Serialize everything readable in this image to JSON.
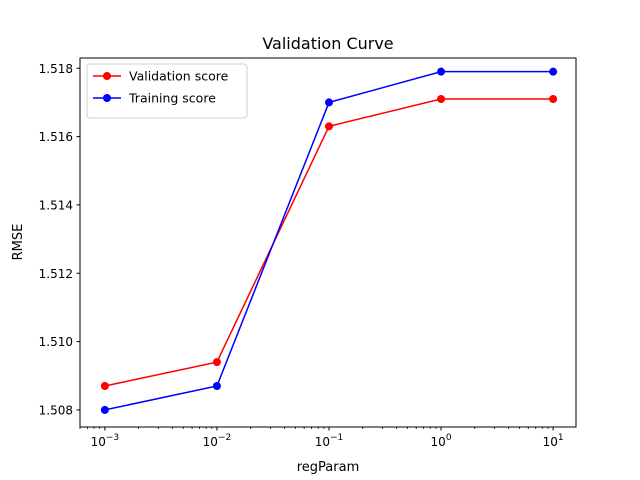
{
  "chart_data": {
    "type": "line",
    "title": "Validation Curve",
    "xlabel": "regParam",
    "ylabel": "RMSE",
    "xscale": "log",
    "xlim": [
      0.0006,
      16
    ],
    "ylim": [
      1.5075,
      1.5183
    ],
    "grid": false,
    "legend_position": "top-left",
    "x": [
      0.001,
      0.01,
      0.1,
      1,
      10
    ],
    "x_tick_labels": [
      {
        "base": "10",
        "exp": "−3"
      },
      {
        "base": "10",
        "exp": "−2"
      },
      {
        "base": "10",
        "exp": "−1"
      },
      {
        "base": "10",
        "exp": "0"
      },
      {
        "base": "10",
        "exp": "1"
      }
    ],
    "y_ticks": [
      1.508,
      1.51,
      1.512,
      1.514,
      1.516,
      1.518
    ],
    "y_tick_labels": [
      "1.508",
      "1.510",
      "1.512",
      "1.514",
      "1.516",
      "1.518"
    ],
    "series": [
      {
        "name": "Validation score",
        "color": "#ff0000",
        "marker": "circle",
        "values": [
          1.5087,
          1.5094,
          1.5163,
          1.5171,
          1.5171
        ]
      },
      {
        "name": "Training score",
        "color": "#0000ff",
        "marker": "circle",
        "values": [
          1.508,
          1.5087,
          1.517,
          1.5179,
          1.5179
        ]
      }
    ]
  }
}
